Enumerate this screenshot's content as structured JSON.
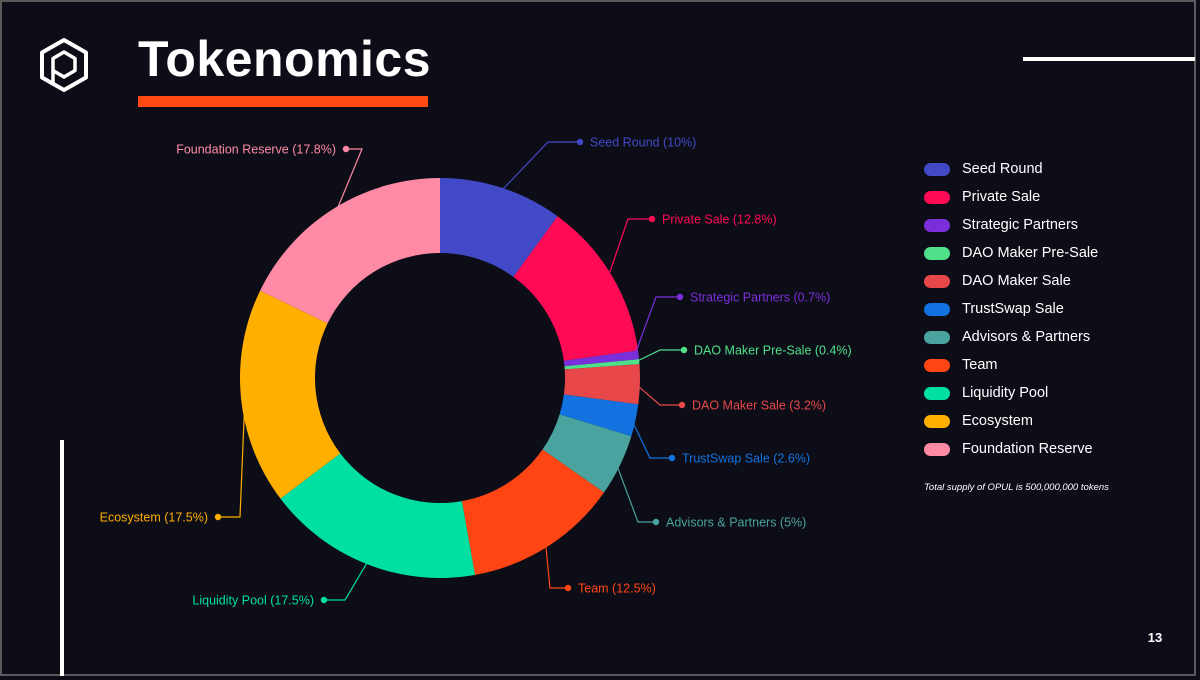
{
  "title": "Tokenomics",
  "page_number": "13",
  "footnote": "Total supply of OPUL is 500,000,000 tokens",
  "chart_data": {
    "type": "pie",
    "variant": "donut",
    "slices": [
      {
        "name": "Seed Round",
        "value": 10,
        "label": "Seed Round (10%)",
        "color": "#4249c6"
      },
      {
        "name": "Private Sale",
        "value": 12.8,
        "label": "Private Sale (12.8%)",
        "color": "#ff0a55"
      },
      {
        "name": "Strategic Partners",
        "value": 0.7,
        "label": "Strategic Partners (0.7%)",
        "color": "#7b2fdb"
      },
      {
        "name": "DAO Maker Pre-Sale",
        "value": 0.4,
        "label": "DAO Maker Pre-Sale (0.4%)",
        "color": "#4fe08a"
      },
      {
        "name": "DAO Maker Sale",
        "value": 3.2,
        "label": "DAO Maker Sale (3.2%)",
        "color": "#e8474a"
      },
      {
        "name": "TrustSwap Sale",
        "value": 2.6,
        "label": "TrustSwap Sale (2.6%)",
        "color": "#1273e0"
      },
      {
        "name": "Advisors & Partners",
        "value": 5,
        "label": "Advisors & Partners (5%)",
        "color": "#4aa39e"
      },
      {
        "name": "Team",
        "value": 12.5,
        "label": "Team (12.5%)",
        "color": "#ff4514"
      },
      {
        "name": "Liquidity Pool",
        "value": 17.5,
        "label": "Liquidity Pool (17.5%)",
        "color": "#00e0a3"
      },
      {
        "name": "Ecosystem",
        "value": 17.5,
        "label": "Ecosystem (17.5%)",
        "color": "#ffaf00"
      },
      {
        "name": "Foundation Reserve",
        "value": 17.8,
        "label": "Foundation Reserve (17.8%)",
        "color": "#ff8aa5"
      }
    ],
    "legend_position": "right"
  },
  "legend": {
    "items": [
      {
        "label": "Seed Round",
        "color": "#4249c6"
      },
      {
        "label": "Private Sale",
        "color": "#ff0a55"
      },
      {
        "label": "Strategic Partners",
        "color": "#7b2fdb"
      },
      {
        "label": "DAO Maker Pre-Sale",
        "color": "#4fe08a"
      },
      {
        "label": "DAO Maker Sale",
        "color": "#e8474a"
      },
      {
        "label": "TrustSwap Sale",
        "color": "#1273e0"
      },
      {
        "label": "Advisors & Partners",
        "color": "#4aa39e"
      },
      {
        "label": "Team",
        "color": "#ff4514"
      },
      {
        "label": "Liquidity Pool",
        "color": "#00e0a3"
      },
      {
        "label": "Ecosystem",
        "color": "#ffaf00"
      },
      {
        "label": "Foundation Reserve",
        "color": "#ff8aa5"
      }
    ]
  }
}
